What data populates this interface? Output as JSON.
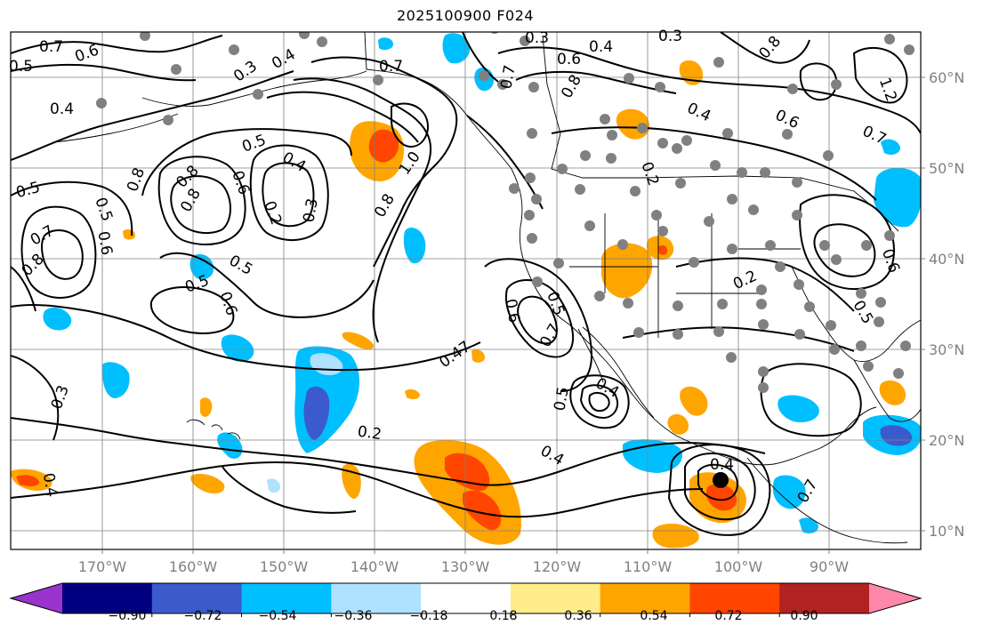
{
  "title": "2025100900 F024",
  "longitude_labels": [
    "170°W",
    "160°W",
    "150°W",
    "140°W",
    "130°W",
    "120°W",
    "110°W",
    "100°W",
    "90°W"
  ],
  "latitude_labels": [
    "60°N",
    "50°N",
    "40°N",
    "30°N",
    "20°N",
    "10°N"
  ],
  "colorbar": {
    "colors": [
      "#9933cc",
      "#000080",
      "#3b5bcc",
      "#00bfff",
      "#aee2ff",
      "#ffffff",
      "#ffec8b",
      "#ffa500",
      "#ff4500",
      "#b22222",
      "#ff88aa"
    ],
    "labels": [
      "−0.90",
      "−0.72",
      "−0.54",
      "−0.36",
      "−0.18",
      "0.18",
      "0.36",
      "0.54",
      "0.72",
      "0.90"
    ]
  },
  "contour_labels": [
    "0.7",
    "0.6",
    "0.5",
    "0.4",
    "0.3",
    "0.7",
    "0.3",
    "0.4",
    "0.6",
    "0.8",
    "0.3",
    "0.4",
    "1.2",
    "0.6",
    "0.7",
    "0.4",
    "0.8",
    "0.5",
    "0.4",
    "0.8",
    "1.0",
    "0.8",
    "0.5",
    "0.7",
    "0.8",
    "0.6",
    "0.2",
    "0.3",
    "0.6",
    "0.8",
    "0.5",
    "0.5",
    "0.6",
    "0.2",
    "0.5",
    "0.6",
    "0.7",
    "0.8",
    "0.4",
    "0.47",
    "0.6",
    "0.7",
    "0.4",
    "0.5",
    "0.5",
    "0.4",
    "0.3",
    "0.2",
    "0.2",
    "0.4",
    "0.7",
    "0.5"
  ],
  "marker_color": "#808080",
  "contour_color": "#000000",
  "grid_color": "#808080"
}
